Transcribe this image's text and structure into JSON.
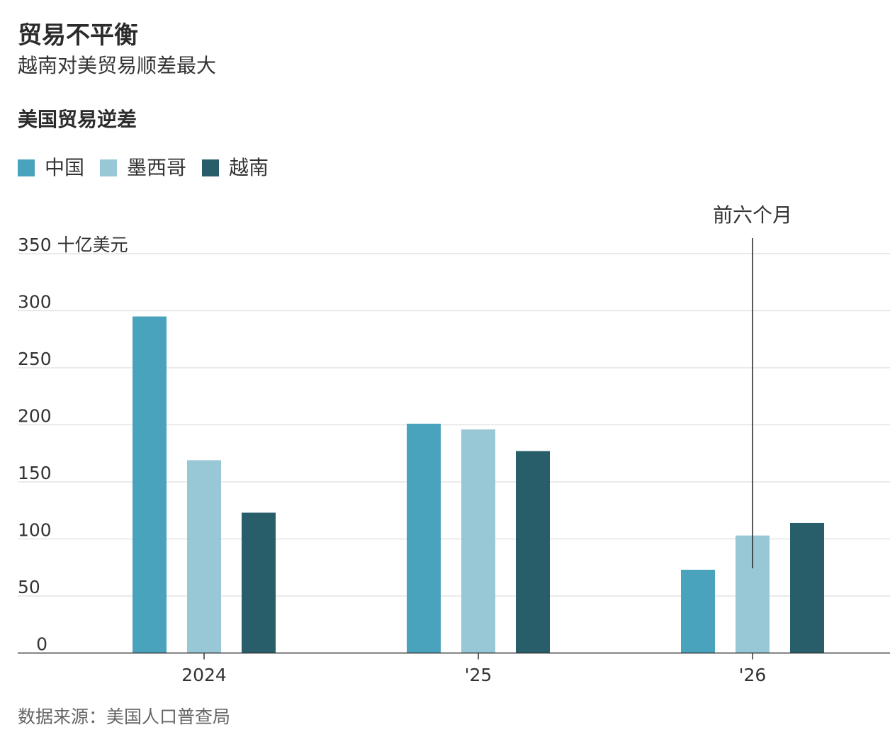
{
  "headline": "贸易不平衡",
  "subhead": "越南对美贸易顺差最大",
  "source": "数据来源：美国人口普查局",
  "chart_data": {
    "type": "bar",
    "title": "美国贸易逆差",
    "categories": [
      "2024",
      "'25",
      "'26"
    ],
    "series": [
      {
        "name": "中国",
        "color": "#4aa3bc",
        "values": [
          295,
          201,
          73
        ]
      },
      {
        "name": "墨西哥",
        "color": "#98c8d6",
        "values": [
          169,
          196,
          103
        ]
      },
      {
        "name": "越南",
        "color": "#275e69",
        "values": [
          123,
          177,
          114
        ]
      }
    ],
    "ylim": [
      0,
      350
    ],
    "yticks": [
      0,
      50,
      100,
      150,
      200,
      250,
      300,
      350
    ],
    "ylabel_top": "350 十亿美元",
    "grid": true,
    "legend_position": "top-left",
    "annotation": {
      "text": "前六个月",
      "category": "'26"
    }
  }
}
